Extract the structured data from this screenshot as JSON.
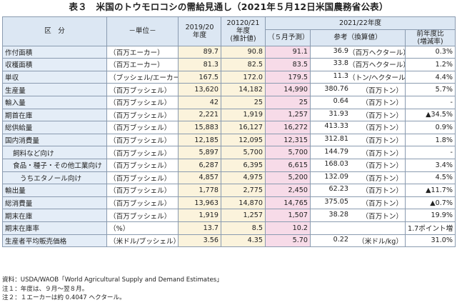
{
  "title": "表３　米国のトウモロコシの需給見通し（2021年５月12日米国農務省公表）",
  "headers": {
    "item": "区　分",
    "unit": "－単位－",
    "col1": [
      "2019/20",
      "年度"
    ],
    "col2": [
      "20120/21",
      "年度",
      "(推計値)"
    ],
    "proj_group": "2021/22年度",
    "proj": "（５月予測）",
    "ref": "参考（換算値）",
    "chg": [
      "前年度比",
      "(増減率)"
    ]
  },
  "rows": [
    {
      "item": "作付面積",
      "unit": "（百万エーカー）",
      "v1": "89.7",
      "v2": "90.8",
      "proj": "91.1",
      "ref": "36.9",
      "ref_unit": "（百万ヘクタール）",
      "chg": "0.3%"
    },
    {
      "item": "収穫面積",
      "unit": "（百万エーカー）",
      "v1": "81.3",
      "v2": "82.5",
      "proj": "83.5",
      "ref": "33.8",
      "ref_unit": "（百万ヘクタール）",
      "chg": "1.2%"
    },
    {
      "item": "単収",
      "unit": "（ブッシェル/エーカー）",
      "v1": "167.5",
      "v2": "172.0",
      "proj": "179.5",
      "ref": "11.3",
      "ref_unit": "（トン/ヘクタール）",
      "chg": "4.4%"
    },
    {
      "item": "生産量",
      "unit": "（百万ブッシェル）",
      "v1": "13,620",
      "v2": "14,182",
      "proj": "14,990",
      "ref": "380.76",
      "ref_unit": "（百万トン）",
      "chg": "5.7%"
    },
    {
      "item": "輸入量",
      "unit": "（百万ブッシェル）",
      "v1": "42",
      "v2": "25",
      "proj": "25",
      "ref": "0.64",
      "ref_unit": "（百万トン）",
      "chg": "-"
    },
    {
      "item": "期首在庫",
      "unit": "（百万ブッシェル）",
      "v1": "2,221",
      "v2": "1,919",
      "proj": "1,257",
      "ref": "31.93",
      "ref_unit": "（百万トン）",
      "chg": "▲34.5%"
    },
    {
      "item": "総供給量",
      "unit": "（百万ブッシェル）",
      "v1": "15,883",
      "v2": "16,127",
      "proj": "16,272",
      "ref": "413.33",
      "ref_unit": "（百万トン）",
      "chg": "0.9%"
    },
    {
      "item": "国内消費量",
      "unit": "（百万ブッシェル）",
      "v1": "12,185",
      "v2": "12,095",
      "proj": "12,315",
      "ref": "312.81",
      "ref_unit": "（百万トン）",
      "chg": "1.8%"
    },
    {
      "item": "飼料など向け",
      "unit": "（百万ブッシェル）",
      "v1": "5,897",
      "v2": "5,700",
      "proj": "5,700",
      "ref": "144.79",
      "ref_unit": "（百万トン）",
      "chg": "-"
    },
    {
      "item": "食品・種子・その他工業向け",
      "unit": "（百万ブッシェル）",
      "v1": "6,287",
      "v2": "6,395",
      "proj": "6,615",
      "ref": "168.03",
      "ref_unit": "（百万トン）",
      "chg": "3.4%"
    },
    {
      "item": "うちエタノール向け",
      "unit": "（百万ブッシェル）",
      "v1": "4,857",
      "v2": "4,975",
      "proj": "5,200",
      "ref": "132.09",
      "ref_unit": "（百万トン）",
      "chg": "4.5%"
    },
    {
      "item": "輸出量",
      "unit": "（百万ブッシェル）",
      "v1": "1,778",
      "v2": "2,775",
      "proj": "2,450",
      "ref": "62.23",
      "ref_unit": "（百万トン）",
      "chg": "▲11.7%"
    },
    {
      "item": "総消費量",
      "unit": "（百万ブッシェル）",
      "v1": "13,963",
      "v2": "14,870",
      "proj": "14,765",
      "ref": "375.05",
      "ref_unit": "（百万トン）",
      "chg": "▲0.7%"
    },
    {
      "item": "期末在庫",
      "unit": "（百万ブッシェル）",
      "v1": "1,919",
      "v2": "1,257",
      "proj": "1,507",
      "ref": "38.28",
      "ref_unit": "（百万トン）",
      "chg": "19.9%"
    },
    {
      "item": "期末在庫率",
      "unit": "（%）",
      "v1": "13.7",
      "v2": "8.5",
      "proj": "10.2",
      "ref": "",
      "ref_unit": "",
      "chg": "1.7ポイント増"
    },
    {
      "item": "生産者平均販売価格",
      "unit": "（米ドル/ブッシェル）",
      "v1": "3.56",
      "v2": "4.35",
      "proj": "5.70",
      "ref": "0.22",
      "ref_unit": "（米ドル/kg）",
      "chg": "31.0%"
    }
  ],
  "notes": [
    "資料：USDA/WAOB「World Agricultural Supply and Demand Estimates」",
    "注１：年度は、９月～翌８月。",
    "注２：１エーカーは約 0.4047 ヘクタール。"
  ]
}
